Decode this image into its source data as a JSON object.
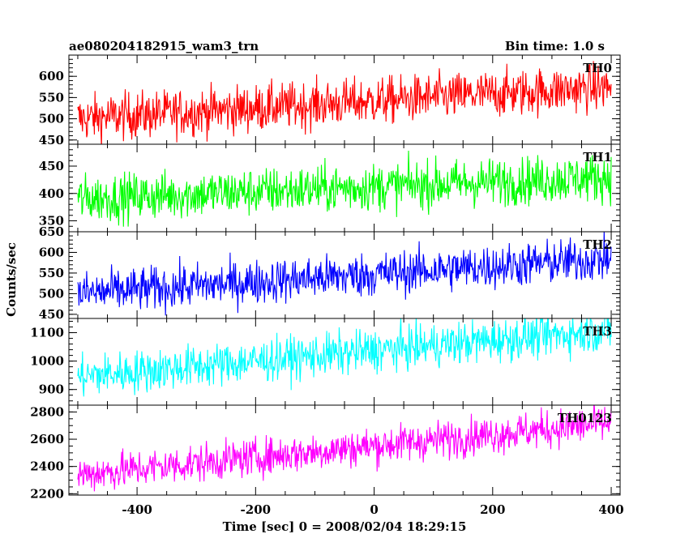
{
  "header": {
    "title": "ae080204182915_wam3_trn",
    "bin_time": "Bin time: 1.0 s"
  },
  "chart_data": {
    "type": "line",
    "title": "ae080204182915_wam3_trn",
    "subtitle": "Bin time: 1.0 s",
    "xlabel": "Time [sec] 0 = 2008/02/04 18:29:15",
    "ylabel": "Counts/sec",
    "xlim": [
      -515,
      415
    ],
    "x_ticks": [
      -400,
      -200,
      0,
      200,
      400
    ],
    "x_range": [
      -500,
      400
    ],
    "grid": false,
    "panels": [
      {
        "name": "TH0",
        "color": "#ff0000",
        "ylim": [
          440,
          650
        ],
        "yticks": [
          450,
          500,
          550,
          600
        ],
        "trend_start": 500,
        "trend_end": 575,
        "noise": 28
      },
      {
        "name": "TH1",
        "color": "#00ff00",
        "ylim": [
          330,
          490
        ],
        "yticks": [
          350,
          400,
          450
        ],
        "trend_start": 390,
        "trend_end": 430,
        "noise": 22
      },
      {
        "name": "TH2",
        "color": "#0000ff",
        "ylim": [
          440,
          650
        ],
        "yticks": [
          450,
          500,
          550,
          600,
          650
        ],
        "trend_start": 500,
        "trend_end": 585,
        "noise": 27
      },
      {
        "name": "TH3",
        "color": "#00ffff",
        "ylim": [
          845,
          1150
        ],
        "yticks": [
          900,
          1000,
          1100
        ],
        "trend_start": 945,
        "trend_end": 1110,
        "noise": 38
      },
      {
        "name": "TH0123",
        "color": "#ff00ff",
        "ylim": [
          2190,
          2850
        ],
        "yticks": [
          2200,
          2400,
          2600,
          2800
        ],
        "trend_start": 2340,
        "trend_end": 2720,
        "noise": 70
      }
    ]
  }
}
